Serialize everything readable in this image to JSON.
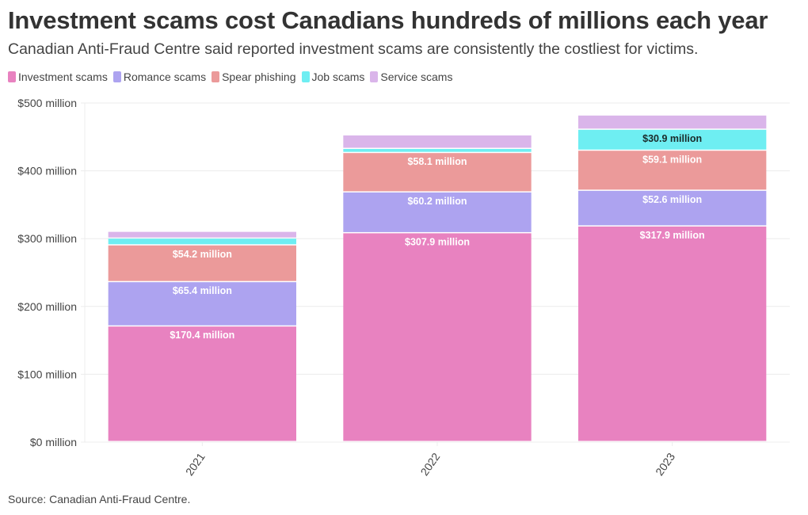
{
  "title": "Investment scams cost Canadians hundreds of millions each year",
  "subtitle": "Canadian Anti-Fraud Centre said reported investment scams are consistently the costliest for victims.",
  "source": "Source: Canadian Anti-Fraud Centre.",
  "chart_data": {
    "type": "bar",
    "stacked": true,
    "title": "Investment scams cost Canadians hundreds of millions each year",
    "xlabel": "",
    "ylabel": "",
    "categories": [
      "2021",
      "2022",
      "2023"
    ],
    "ylim": [
      0,
      500
    ],
    "yticks": [
      0,
      100,
      200,
      300,
      400,
      500
    ],
    "ytick_labels": [
      "$0 million",
      "$100 million",
      "$200 million",
      "$300 million",
      "$400 million",
      "$500 million"
    ],
    "grid": true,
    "legend_position": "top-left",
    "series": [
      {
        "name": "Investment scams",
        "color": "#e882c0",
        "values": [
          170.4,
          307.9,
          317.9
        ],
        "labels": [
          "$170.4 million",
          "$307.9 million",
          "$317.9 million"
        ],
        "label_color": "#ffffff"
      },
      {
        "name": "Romance scams",
        "color": "#ada3f0",
        "values": [
          65.4,
          60.2,
          52.6
        ],
        "labels": [
          "$65.4 million",
          "$60.2 million",
          "$52.6 million"
        ],
        "label_color": "#ffffff"
      },
      {
        "name": "Spear phishing",
        "color": "#eb9a9a",
        "values": [
          54.2,
          58.1,
          59.1
        ],
        "labels": [
          "$54.2 million",
          "$58.1 million",
          "$59.1 million"
        ],
        "label_color": "#ffffff"
      },
      {
        "name": "Job scams",
        "color": "#6eeef2",
        "values": [
          10,
          6,
          30.9
        ],
        "labels": [
          "",
          "",
          "$30.9 million"
        ],
        "label_color": "#1a2a2a"
      },
      {
        "name": "Service scams",
        "color": "#dab5ea",
        "values": [
          10,
          20,
          21
        ],
        "labels": [
          "",
          "",
          ""
        ],
        "label_color": "#ffffff"
      }
    ]
  }
}
